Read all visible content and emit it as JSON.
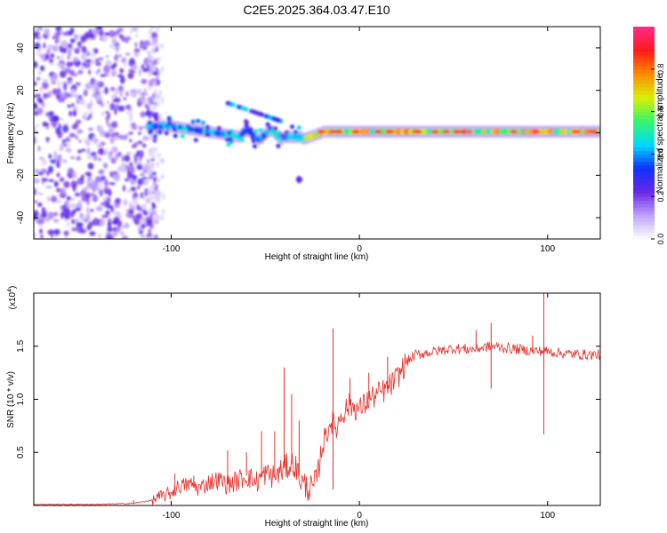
{
  "page_title": "C2E5.2025.364.03.47.E10",
  "chart_data": [
    {
      "type": "heatmap",
      "title": "C2E5.2025.364.03.47.E10",
      "xlabel": "Height of straight line (km)",
      "ylabel": "Frequency (Hz)",
      "xlim": [
        -173,
        128
      ],
      "ylim": [
        -50,
        50
      ],
      "xticks": [
        -100,
        0,
        100
      ],
      "yticks": [
        -40,
        -20,
        0,
        20,
        40
      ],
      "colorbar": {
        "label": "Normalized spectral amplitude",
        "range": [
          0,
          1
        ],
        "ticks": [
          0.0,
          0.2,
          0.4,
          0.6,
          0.8
        ],
        "colormap": [
          "#ffffff",
          "#c0a4ff",
          "#6a28e6",
          "#1030ff",
          "#00d8ff",
          "#36f56a",
          "#d8f000",
          "#ff8c00",
          "#ff1a1a",
          "#ff2a8a"
        ]
      },
      "features": [
        {
          "name": "scattered noise",
          "x_range": [
            -173,
            -107
          ],
          "freq_range": [
            -50,
            50
          ],
          "amplitude": 0.1
        },
        {
          "name": "main signal track",
          "x_range": [
            -112,
            128
          ],
          "freq_center": 0,
          "amplitude": 0.7
        },
        {
          "name": "upper branch",
          "x_range": [
            -70,
            -40
          ],
          "freq_range": [
            5,
            14
          ],
          "amplitude": 0.3
        },
        {
          "name": "isolated blob",
          "x": -32,
          "freq": -22,
          "amplitude": 0.25
        }
      ]
    },
    {
      "type": "line",
      "xlabel": "Height of straight line (km)",
      "ylabel": "SNR (10 * v/v)",
      "y_multiplier": "(x10",
      "y_multiplier_exp": "4",
      "y_multiplier_close": ")",
      "xlim": [
        -173,
        128
      ],
      "ylim": [
        0,
        2.0
      ],
      "xticks": [
        -100,
        0,
        100
      ],
      "yticks": [
        0.5,
        1.0,
        1.5
      ],
      "series": [
        {
          "name": "SNR",
          "color": "#e8302a",
          "x": [
            -173,
            -140,
            -120,
            -110,
            -100,
            -96,
            -90,
            -85,
            -80,
            -75,
            -70,
            -65,
            -60,
            -55,
            -50,
            -45,
            -40,
            -35,
            -30,
            -25,
            -22,
            -20,
            -17,
            -15,
            -12,
            -10,
            -5,
            0,
            5,
            10,
            15,
            20,
            25,
            30,
            40,
            50,
            60,
            70,
            80,
            90,
            100,
            110,
            120,
            128
          ],
          "y": [
            0.01,
            0.01,
            0.02,
            0.05,
            0.12,
            0.18,
            0.2,
            0.16,
            0.22,
            0.24,
            0.2,
            0.23,
            0.28,
            0.22,
            0.3,
            0.27,
            0.35,
            0.4,
            0.2,
            0.15,
            0.3,
            0.55,
            0.7,
            0.8,
            0.72,
            0.85,
            0.95,
            0.9,
            1.0,
            1.05,
            1.1,
            1.2,
            1.35,
            1.42,
            1.45,
            1.48,
            1.47,
            1.5,
            1.48,
            1.46,
            1.45,
            1.43,
            1.42,
            1.42
          ]
        }
      ],
      "spikes": [
        {
          "x": -120,
          "y": 0.05
        },
        {
          "x": -98,
          "y": 0.3
        },
        {
          "x": -88,
          "y": 0.28
        },
        {
          "x": -70,
          "y": 0.52
        },
        {
          "x": -60,
          "y": 0.5
        },
        {
          "x": -52,
          "y": 0.7
        },
        {
          "x": -45,
          "y": 0.7
        },
        {
          "x": -40,
          "y": 1.3
        },
        {
          "x": -36,
          "y": 1.05
        },
        {
          "x": -32,
          "y": 0.8
        },
        {
          "x": -14,
          "y": 1.67
        },
        {
          "x": -14,
          "y": 0.15
        },
        {
          "x": -5,
          "y": 1.2
        },
        {
          "x": 5,
          "y": 1.25
        },
        {
          "x": 15,
          "y": 1.4
        },
        {
          "x": 62,
          "y": 1.65
        },
        {
          "x": 70,
          "y": 1.72
        },
        {
          "x": 70,
          "y": 1.1
        },
        {
          "x": 98,
          "y": 2.0
        },
        {
          "x": 98,
          "y": 0.67
        },
        {
          "x": 92,
          "y": 1.6
        }
      ]
    }
  ]
}
